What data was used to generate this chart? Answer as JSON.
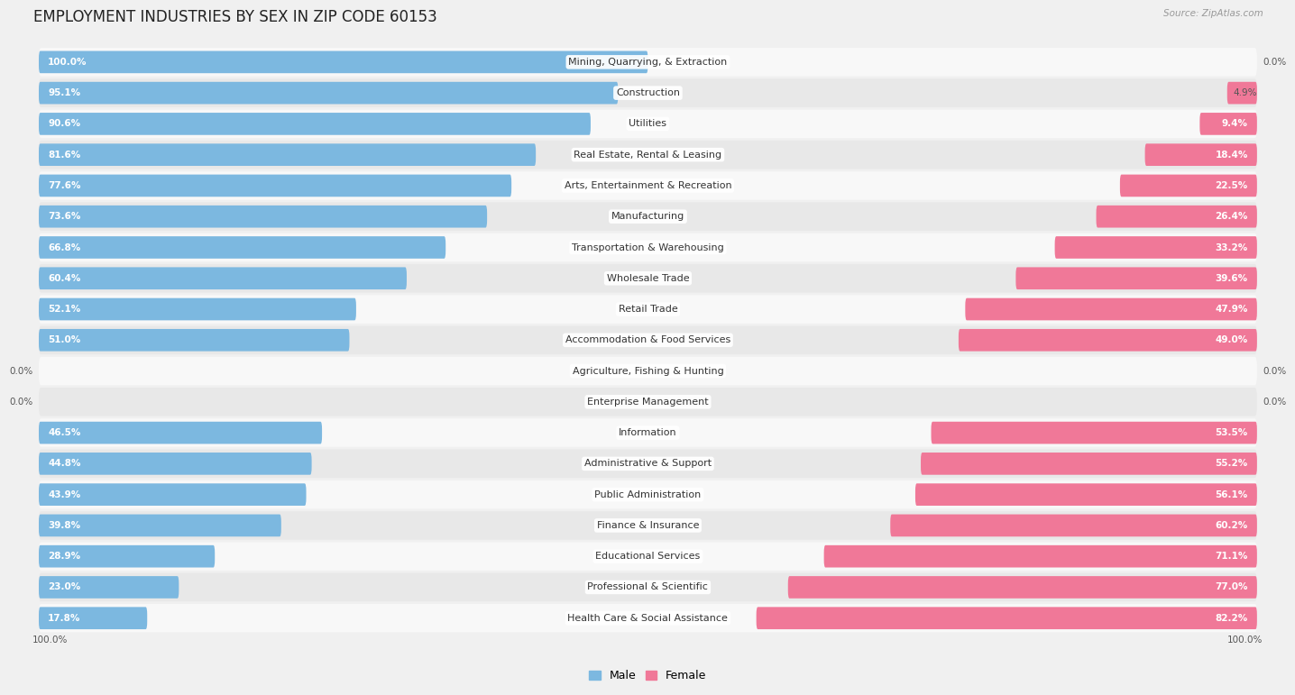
{
  "title": "EMPLOYMENT INDUSTRIES BY SEX IN ZIP CODE 60153",
  "source": "Source: ZipAtlas.com",
  "industries": [
    "Mining, Quarrying, & Extraction",
    "Construction",
    "Utilities",
    "Real Estate, Rental & Leasing",
    "Arts, Entertainment & Recreation",
    "Manufacturing",
    "Transportation & Warehousing",
    "Wholesale Trade",
    "Retail Trade",
    "Accommodation & Food Services",
    "Agriculture, Fishing & Hunting",
    "Enterprise Management",
    "Information",
    "Administrative & Support",
    "Public Administration",
    "Finance & Insurance",
    "Educational Services",
    "Professional & Scientific",
    "Health Care & Social Assistance"
  ],
  "male_pct": [
    100.0,
    95.1,
    90.6,
    81.6,
    77.6,
    73.6,
    66.8,
    60.4,
    52.1,
    51.0,
    0.0,
    0.0,
    46.5,
    44.8,
    43.9,
    39.8,
    28.9,
    23.0,
    17.8
  ],
  "female_pct": [
    0.0,
    4.9,
    9.4,
    18.4,
    22.5,
    26.4,
    33.2,
    39.6,
    47.9,
    49.0,
    0.0,
    0.0,
    53.5,
    55.2,
    56.1,
    60.2,
    71.1,
    77.0,
    82.2
  ],
  "male_color": "#7cb8e0",
  "female_color": "#f07898",
  "bg_color": "#f0f0f0",
  "row_color_light": "#f8f8f8",
  "row_color_dark": "#e8e8e8",
  "title_fontsize": 12,
  "label_fontsize": 8.0,
  "bar_label_fontsize": 7.5,
  "pct_label_inside_color": "#ffffff",
  "pct_label_outside_color": "#555555",
  "inside_threshold": 8.0
}
